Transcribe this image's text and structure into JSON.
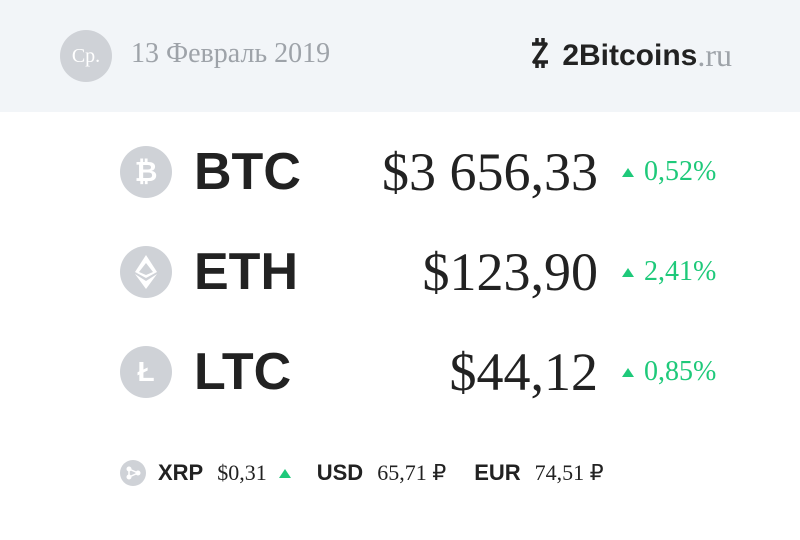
{
  "header": {
    "day": "Ср.",
    "date": "13 Февраль 2019",
    "logo_brand": "2Bitcoins",
    "logo_tld": ".ru",
    "logo_icon": "bitcoin-logo-icon"
  },
  "coins": [
    {
      "ticker": "BTC",
      "price": "$3 656,33",
      "change": "0,52%",
      "direction": "up",
      "icon": "bitcoin-icon",
      "glyph": "₿"
    },
    {
      "ticker": "ETH",
      "price": "$123,90",
      "change": "2,41%",
      "direction": "up",
      "icon": "ethereum-icon",
      "glyph": "◆"
    },
    {
      "ticker": "LTC",
      "price": "$44,12",
      "change": "0,85%",
      "direction": "up",
      "icon": "litecoin-icon",
      "glyph": "Ł"
    }
  ],
  "bottom": {
    "xrp": {
      "ticker": "XRP",
      "price": "$0,31",
      "direction": "up",
      "icon": "ripple-icon"
    },
    "usd": {
      "ticker": "USD",
      "value": "65,71 ₽"
    },
    "eur": {
      "ticker": "EUR",
      "value": "74,51 ₽"
    }
  },
  "colors": {
    "up": "#1ec97a",
    "header_bg": "#f2f5f8",
    "icon_gray": "#cfd2d7"
  }
}
